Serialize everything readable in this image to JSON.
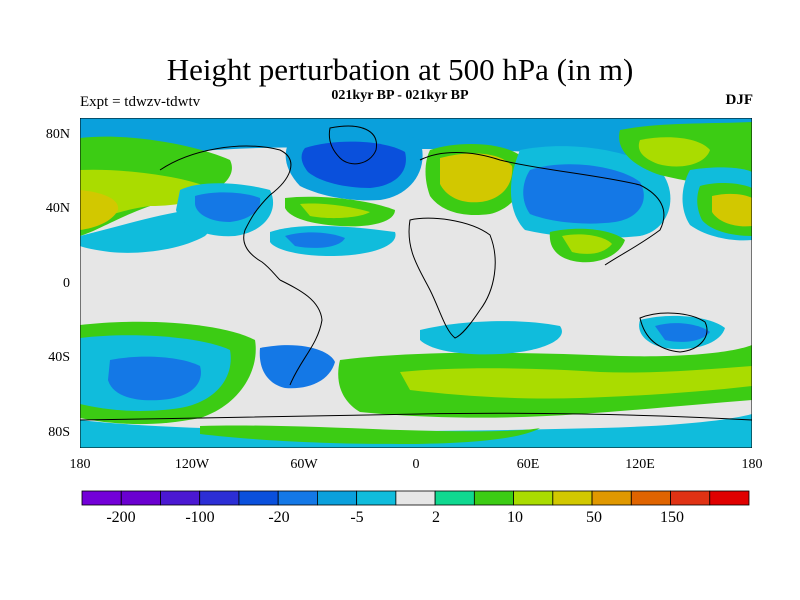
{
  "title": "Height perturbation at 500 hPa (in m)",
  "experiment_label": "Expt = tdwzv-tdwtv",
  "subtitle": "021kyr BP - 021kyr BP",
  "season": "DJF",
  "map": {
    "lat_ticks": [
      "80N",
      "40N",
      "0",
      "40S",
      "80S"
    ],
    "lon_ticks": [
      "180",
      "120W",
      "60W",
      "0",
      "60E",
      "120E",
      "180"
    ],
    "background_color": "#e6e6e6"
  },
  "colorbar": {
    "colors": [
      "#7300d8",
      "#6a00d0",
      "#4b18d2",
      "#2c2ed5",
      "#0a50dc",
      "#1478e6",
      "#0aa0dc",
      "#10bcdc",
      "#e6e6e6",
      "#10d890",
      "#3ccc14",
      "#aadc00",
      "#d2c800",
      "#e09800",
      "#e06400",
      "#e03214",
      "#e00000"
    ],
    "labels": [
      "-200",
      "-100",
      "-20",
      "-5",
      "2",
      "10",
      "50",
      "150"
    ]
  }
}
